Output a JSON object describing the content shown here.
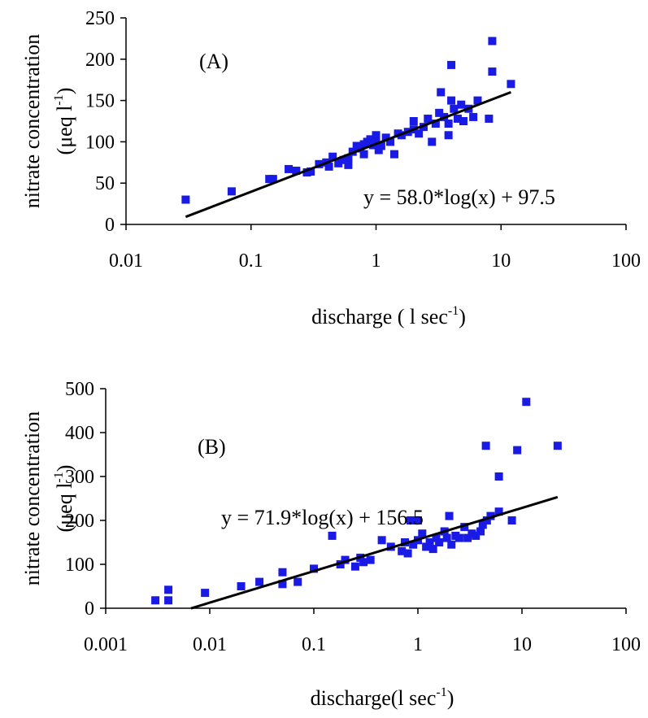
{
  "chart_data": [
    {
      "type": "scatter",
      "panel_label": "(A)",
      "xlabel_main": "discharge ( l sec",
      "xlabel_sup": "-1",
      "xlabel_close": ")",
      "ylabel_main": "nitrate concentration",
      "ylabel_unit_main": "(μeq l",
      "ylabel_unit_sup": "-1",
      "ylabel_unit_close": ")",
      "xscale": "log",
      "xlim": [
        0.01,
        100
      ],
      "ylim": [
        0,
        250
      ],
      "xticks": [
        "0.01",
        "0.1",
        "1",
        "10",
        "100"
      ],
      "yticks": [
        "0",
        "50",
        "100",
        "150",
        "200",
        "250"
      ],
      "xtick_values": [
        0.01,
        0.1,
        1,
        10,
        100
      ],
      "ytick_values": [
        0,
        50,
        100,
        150,
        200,
        250
      ],
      "grid": false,
      "marker_color": "#1a1ae6",
      "equation": "y = 58.0*log(x) + 97.5",
      "fit": {
        "slope": 58.0,
        "intercept": 97.5,
        "x_range": [
          0.03,
          12
        ]
      },
      "points": [
        [
          0.03,
          30
        ],
        [
          0.07,
          40
        ],
        [
          0.14,
          55
        ],
        [
          0.15,
          55
        ],
        [
          0.2,
          67
        ],
        [
          0.23,
          65
        ],
        [
          0.28,
          63
        ],
        [
          0.3,
          64
        ],
        [
          0.35,
          73
        ],
        [
          0.4,
          75
        ],
        [
          0.42,
          70
        ],
        [
          0.45,
          82
        ],
        [
          0.5,
          74
        ],
        [
          0.55,
          78
        ],
        [
          0.6,
          72
        ],
        [
          0.6,
          80
        ],
        [
          0.65,
          88
        ],
        [
          0.7,
          95
        ],
        [
          0.75,
          92
        ],
        [
          0.8,
          85
        ],
        [
          0.8,
          97
        ],
        [
          0.85,
          100
        ],
        [
          0.9,
          103
        ],
        [
          0.95,
          96
        ],
        [
          1.0,
          100
        ],
        [
          1.0,
          108
        ],
        [
          1.05,
          90
        ],
        [
          1.1,
          95
        ],
        [
          1.2,
          105
        ],
        [
          1.3,
          100
        ],
        [
          1.4,
          85
        ],
        [
          1.5,
          110
        ],
        [
          1.6,
          108
        ],
        [
          1.8,
          112
        ],
        [
          2.0,
          115
        ],
        [
          2.0,
          125
        ],
        [
          2.2,
          110
        ],
        [
          2.4,
          118
        ],
        [
          2.6,
          128
        ],
        [
          2.8,
          100
        ],
        [
          3.0,
          122
        ],
        [
          3.2,
          135
        ],
        [
          3.3,
          160
        ],
        [
          3.5,
          130
        ],
        [
          3.8,
          108
        ],
        [
          3.8,
          122
        ],
        [
          4.0,
          150
        ],
        [
          4.0,
          193
        ],
        [
          4.2,
          140
        ],
        [
          4.5,
          128
        ],
        [
          4.8,
          145
        ],
        [
          5.0,
          125
        ],
        [
          5.5,
          140
        ],
        [
          6.0,
          130
        ],
        [
          6.5,
          150
        ],
        [
          8.0,
          128
        ],
        [
          8.5,
          185
        ],
        [
          8.5,
          222
        ],
        [
          12.0,
          170
        ]
      ]
    },
    {
      "type": "scatter",
      "panel_label": "(B)",
      "xlabel_main": "discharge(l sec",
      "xlabel_sup": "-1",
      "xlabel_close": ")",
      "ylabel_main": "nitrate concentration",
      "ylabel_unit_main": "(μeq l",
      "ylabel_unit_sup": "-1",
      "ylabel_unit_close": ")",
      "xscale": "log",
      "xlim": [
        0.001,
        100
      ],
      "ylim": [
        0,
        500
      ],
      "xticks": [
        "0.001",
        "0.01",
        "0.1",
        "1",
        "10",
        "100"
      ],
      "yticks": [
        "0",
        "100",
        "200",
        "300",
        "400",
        "500"
      ],
      "xtick_values": [
        0.001,
        0.01,
        0.1,
        1,
        10,
        100
      ],
      "ytick_values": [
        0,
        100,
        200,
        300,
        400,
        500
      ],
      "grid": false,
      "marker_color": "#1a1ae6",
      "equation": "y = 71.9*log(x) + 156.5",
      "fit": {
        "slope": 71.9,
        "intercept": 156.5,
        "x_range": [
          0.0066,
          22
        ]
      },
      "points": [
        [
          0.003,
          18
        ],
        [
          0.004,
          18
        ],
        [
          0.004,
          42
        ],
        [
          0.009,
          35
        ],
        [
          0.02,
          50
        ],
        [
          0.03,
          60
        ],
        [
          0.05,
          55
        ],
        [
          0.05,
          82
        ],
        [
          0.07,
          60
        ],
        [
          0.1,
          90
        ],
        [
          0.15,
          165
        ],
        [
          0.18,
          100
        ],
        [
          0.2,
          110
        ],
        [
          0.25,
          95
        ],
        [
          0.28,
          115
        ],
        [
          0.3,
          105
        ],
        [
          0.35,
          110
        ],
        [
          0.45,
          155
        ],
        [
          0.55,
          140
        ],
        [
          0.7,
          130
        ],
        [
          0.75,
          150
        ],
        [
          0.8,
          125
        ],
        [
          0.85,
          200
        ],
        [
          0.9,
          145
        ],
        [
          1.0,
          155
        ],
        [
          1.0,
          200
        ],
        [
          1.1,
          170
        ],
        [
          1.2,
          140
        ],
        [
          1.3,
          150
        ],
        [
          1.4,
          135
        ],
        [
          1.5,
          160
        ],
        [
          1.6,
          150
        ],
        [
          1.8,
          175
        ],
        [
          1.9,
          160
        ],
        [
          2.0,
          210
        ],
        [
          2.1,
          145
        ],
        [
          2.3,
          165
        ],
        [
          2.5,
          160
        ],
        [
          2.8,
          185
        ],
        [
          3.0,
          160
        ],
        [
          3.3,
          170
        ],
        [
          3.6,
          165
        ],
        [
          4.0,
          175
        ],
        [
          4.2,
          190
        ],
        [
          4.5,
          370
        ],
        [
          4.6,
          200
        ],
        [
          5.0,
          210
        ],
        [
          6.0,
          300
        ],
        [
          6.0,
          220
        ],
        [
          8.0,
          200
        ],
        [
          9.0,
          360
        ],
        [
          11.0,
          470
        ],
        [
          22.0,
          370
        ]
      ]
    }
  ]
}
